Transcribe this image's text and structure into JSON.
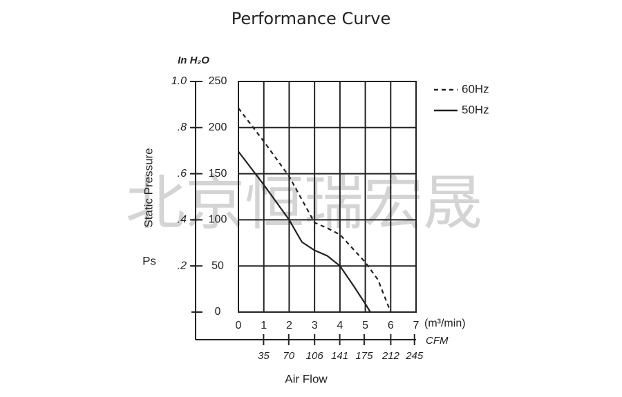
{
  "chart_data": {
    "type": "line",
    "title": "Performance Curve",
    "watermark": "北京恒瑞宏晟",
    "y_label": "Static Pressure",
    "y_symbol": "Ps",
    "y2_label": "In H₂O",
    "x_unit": "(m³/min)",
    "x2_label": "CFM",
    "x_label": "Air Flow",
    "series": [
      {
        "name": "60Hz",
        "color": "#222222",
        "dash": true,
        "x": [
          0,
          1,
          2,
          3,
          3.5,
          4,
          5,
          5.5,
          6
        ],
        "values": [
          221,
          185,
          147,
          97,
          91,
          84,
          54,
          35,
          0
        ]
      },
      {
        "name": "50Hz",
        "color": "#222222",
        "dash": false,
        "x": [
          0,
          1,
          2,
          2.5,
          3,
          3.5,
          4,
          4.5,
          5,
          5.2
        ],
        "values": [
          174,
          138,
          100,
          76,
          67,
          61,
          50,
          30,
          9,
          0
        ]
      }
    ],
    "xlim": [
      0,
      7
    ],
    "xticks": [
      0,
      1,
      2,
      3,
      4,
      5,
      6,
      7
    ],
    "ylim": [
      0,
      250
    ],
    "yticks": [
      0,
      50,
      100,
      150,
      200,
      250
    ],
    "y2lim": [
      0,
      1
    ],
    "y2ticks": [
      {
        "value": 0.2,
        "label": ".2"
      },
      {
        "value": 0.4,
        "label": ".4"
      },
      {
        "value": 0.6,
        "label": ".6"
      },
      {
        "value": 0.8,
        "label": ".8"
      },
      {
        "value": 1,
        "label": "1.0"
      }
    ],
    "x2lim": [
      0,
      247.2
    ],
    "x2ticks": [
      35,
      70,
      106,
      141,
      175,
      212,
      245
    ],
    "grid": true,
    "legend": "top-right"
  }
}
